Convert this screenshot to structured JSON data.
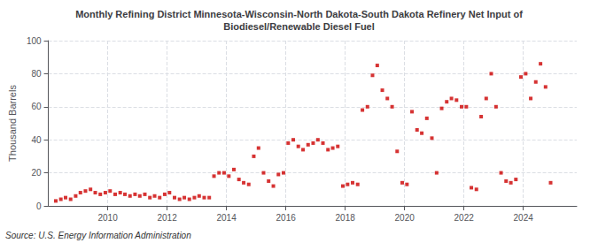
{
  "chart_data": {
    "type": "scatter",
    "title": "Monthly Refining District Minnesota-Wisconsin-North Dakota-South Dakota Refinery Net Input of\nBiodiesel/Renewable Diesel Fuel",
    "ylabel": "Thousand Barrels",
    "annotations": [
      "Source: U.S. Energy Information Administration"
    ],
    "color": "#cc0000",
    "marker": "square",
    "grid": true,
    "xlim": [
      2008.0,
      2025.8
    ],
    "xticks": [
      2010,
      2012,
      2014,
      2016,
      2018,
      2020,
      2022,
      2024
    ],
    "ylim": [
      0,
      100
    ],
    "yticks": [
      0,
      20,
      40,
      60,
      80,
      100
    ],
    "x": [
      2008.25,
      2008.42,
      2008.58,
      2008.75,
      2008.92,
      2009.08,
      2009.25,
      2009.42,
      2009.58,
      2009.75,
      2009.92,
      2010.08,
      2010.25,
      2010.42,
      2010.58,
      2010.75,
      2010.92,
      2011.08,
      2011.25,
      2011.42,
      2011.58,
      2011.75,
      2011.92,
      2012.08,
      2012.25,
      2012.42,
      2012.58,
      2012.75,
      2012.92,
      2013.08,
      2013.25,
      2013.42,
      2013.58,
      2013.75,
      2013.92,
      2014.08,
      2014.25,
      2014.42,
      2014.58,
      2014.75,
      2014.92,
      2015.08,
      2015.25,
      2015.42,
      2015.58,
      2015.75,
      2015.92,
      2016.08,
      2016.25,
      2016.42,
      2016.58,
      2016.75,
      2016.92,
      2017.08,
      2017.25,
      2017.42,
      2017.58,
      2017.75,
      2017.92,
      2018.08,
      2018.25,
      2018.42,
      2018.58,
      2018.75,
      2018.92,
      2019.08,
      2019.25,
      2019.42,
      2019.58,
      2019.75,
      2019.92,
      2020.08,
      2020.25,
      2020.42,
      2020.58,
      2020.75,
      2020.92,
      2021.08,
      2021.25,
      2021.42,
      2021.58,
      2021.75,
      2021.92,
      2022.08,
      2022.25,
      2022.42,
      2022.58,
      2022.75,
      2022.92,
      2023.08,
      2023.25,
      2023.42,
      2023.58,
      2023.75,
      2023.92,
      2024.08,
      2024.25,
      2024.42,
      2024.58,
      2024.75,
      2024.92
    ],
    "values": [
      3,
      4,
      5,
      4,
      6,
      8,
      9,
      10,
      8,
      7,
      8,
      9,
      7,
      8,
      7,
      6,
      7,
      6,
      7,
      5,
      6,
      5,
      7,
      8,
      5,
      4,
      5,
      4,
      5,
      6,
      5,
      5,
      18,
      20,
      20,
      18,
      22,
      16,
      14,
      13,
      30,
      35,
      20,
      15,
      12,
      19,
      20,
      38,
      40,
      36,
      34,
      37,
      38,
      40,
      38,
      34,
      35,
      36,
      12,
      13,
      14,
      13,
      58,
      60,
      79,
      85,
      70,
      65,
      60,
      33,
      14,
      13,
      57,
      46,
      44,
      53,
      41,
      20,
      59,
      63,
      65,
      64,
      60,
      60,
      11,
      10,
      54,
      65,
      80,
      60,
      20,
      15,
      14,
      16,
      78,
      80,
      65,
      75,
      86,
      72,
      14
    ]
  }
}
